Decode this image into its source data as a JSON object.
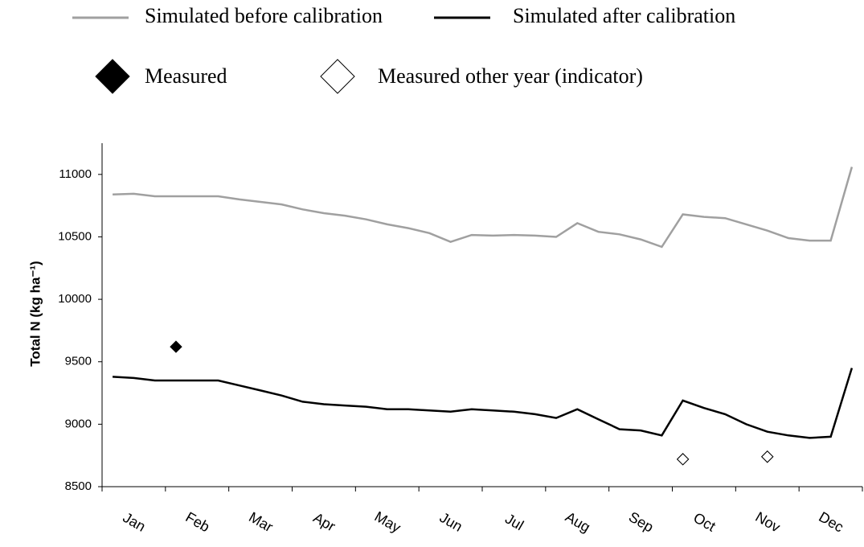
{
  "chart_data": {
    "type": "line",
    "y_label": "Total N (kg ha⁻¹)",
    "categories": [
      null,
      "Jan",
      null,
      null,
      "Feb",
      null,
      null,
      "Mar",
      null,
      null,
      "Apr",
      null,
      null,
      "May",
      null,
      null,
      "Jun",
      null,
      null,
      "Jul",
      null,
      null,
      "Aug",
      null,
      null,
      "Sep",
      null,
      null,
      "Oct",
      null,
      null,
      "Nov",
      null,
      null,
      "Dec",
      null
    ],
    "series": [
      {
        "name": "Simulated before calibration",
        "color": "#a0a0a0",
        "style": "line",
        "values": [
          10840,
          10845,
          10825,
          10825,
          10825,
          10825,
          10800,
          10780,
          10760,
          10720,
          10690,
          10670,
          10640,
          10600,
          10570,
          10530,
          10460,
          10515,
          10510,
          10515,
          10510,
          10500,
          10610,
          10540,
          10520,
          10480,
          10420,
          10680,
          10660,
          10650,
          10600,
          10550,
          10490,
          10470,
          10470,
          11060
        ]
      },
      {
        "name": "Simulated after calibration",
        "color": "#000000",
        "style": "line",
        "values": [
          9380,
          9370,
          9350,
          9350,
          9350,
          9350,
          9310,
          9270,
          9230,
          9180,
          9160,
          9150,
          9140,
          9120,
          9120,
          9110,
          9100,
          9120,
          9110,
          9100,
          9080,
          9050,
          9120,
          9040,
          8960,
          8950,
          8910,
          9190,
          9130,
          9080,
          9000,
          8940,
          8910,
          8890,
          8900,
          9450
        ]
      },
      {
        "name": "Measured",
        "color": "#000000",
        "style": "diamond-filled",
        "values": [
          null,
          null,
          null,
          9620,
          null,
          null,
          null,
          null,
          null,
          null,
          null,
          null,
          null,
          null,
          null,
          null,
          null,
          null,
          null,
          null,
          null,
          null,
          null,
          null,
          null,
          null,
          null,
          8720,
          null,
          null,
          null,
          8740,
          null,
          null,
          null,
          null
        ]
      },
      {
        "name": "Measured other year (indicator)",
        "color": "#000000",
        "style": "diamond-hollow",
        "values": [
          null,
          null,
          null,
          null,
          null,
          null,
          null,
          null,
          null,
          null,
          null,
          null,
          null,
          null,
          null,
          null,
          null,
          null,
          null,
          null,
          null,
          null,
          null,
          null,
          null,
          null,
          null,
          8720,
          null,
          null,
          null,
          8740,
          null,
          null,
          null,
          null
        ]
      }
    ],
    "ylim": [
      8500,
      11250
    ],
    "yticks": [
      8500,
      9000,
      9500,
      10000,
      10500,
      11000
    ],
    "grid": false
  }
}
